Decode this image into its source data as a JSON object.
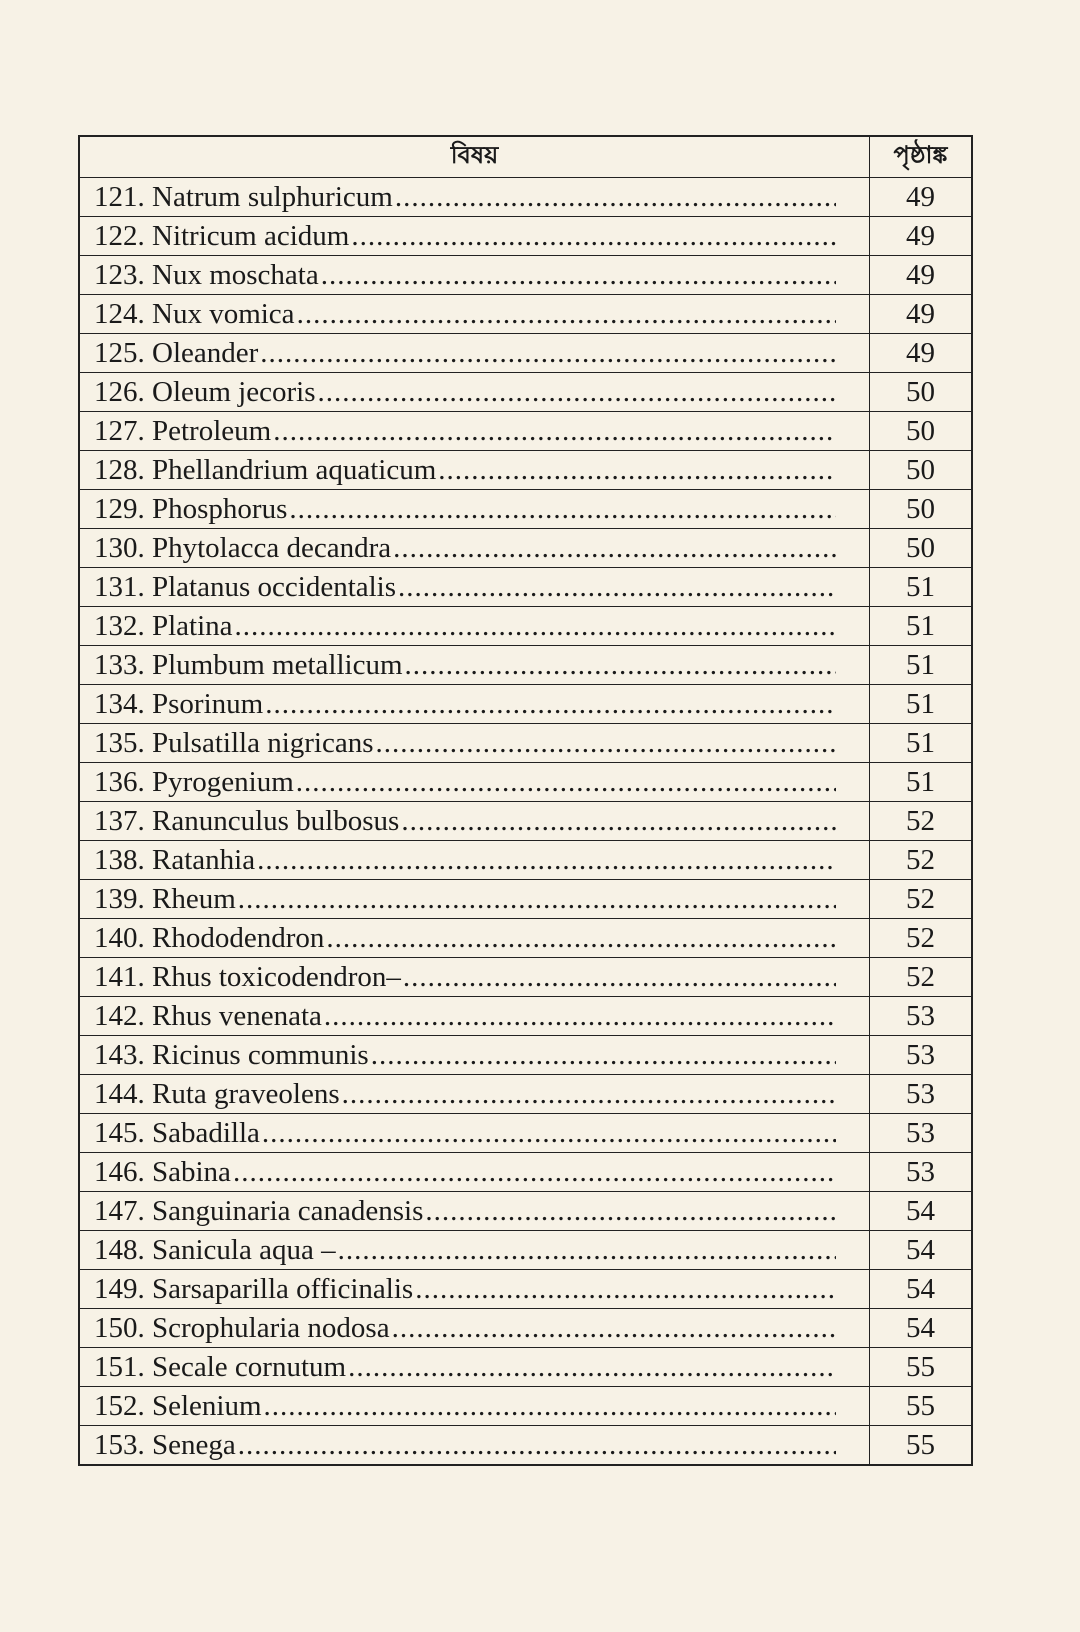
{
  "header": {
    "subject": "বিষয়",
    "page": "পৃষ্ঠাঙ্ক"
  },
  "rows": [
    {
      "label": "121. Natrum sulphuricum",
      "page": "49"
    },
    {
      "label": "122. Nitricum acidum",
      "page": "49"
    },
    {
      "label": "123. Nux moschata",
      "page": "49"
    },
    {
      "label": "124. Nux vomica",
      "page": "49"
    },
    {
      "label": "125. Oleander",
      "page": "49"
    },
    {
      "label": "126. Oleum jecoris",
      "page": "50"
    },
    {
      "label": "127. Petroleum",
      "page": "50"
    },
    {
      "label": "128. Phellandrium aquaticum",
      "page": "50"
    },
    {
      "label": "129. Phosphorus",
      "page": "50"
    },
    {
      "label": "130. Phytolacca decandra",
      "page": "50"
    },
    {
      "label": "131. Platanus occidentalis",
      "page": "51"
    },
    {
      "label": "132. Platina",
      "page": "51"
    },
    {
      "label": "133. Plumbum metallicum",
      "page": "51"
    },
    {
      "label": "134. Psorinum",
      "page": "51"
    },
    {
      "label": "135. Pulsatilla nigricans",
      "page": "51"
    },
    {
      "label": "136. Pyrogenium",
      "page": "51"
    },
    {
      "label": "137. Ranunculus bulbosus",
      "page": "52"
    },
    {
      "label": "138. Ratanhia",
      "page": "52"
    },
    {
      "label": "139. Rheum",
      "page": "52"
    },
    {
      "label": "140. Rhododendron",
      "page": "52"
    },
    {
      "label": "141. Rhus toxicodendron–",
      "page": "52"
    },
    {
      "label": "142. Rhus venenata",
      "page": "53"
    },
    {
      "label": "143. Ricinus communis",
      "page": "53"
    },
    {
      "label": "144. Ruta graveolens",
      "page": "53"
    },
    {
      "label": "145. Sabadilla",
      "page": "53"
    },
    {
      "label": "146. Sabina",
      "page": "53"
    },
    {
      "label": "147. Sanguinaria canadensis",
      "page": "54"
    },
    {
      "label": "148. Sanicula aqua –",
      "page": "54"
    },
    {
      "label": "149. Sarsaparilla officinalis",
      "page": "54"
    },
    {
      "label": "150. Scrophularia nodosa",
      "page": "54"
    },
    {
      "label": "151. Secale cornutum",
      "page": "55"
    },
    {
      "label": "152. Selenium",
      "page": "55"
    },
    {
      "label": "153. Senega",
      "page": "55"
    }
  ]
}
